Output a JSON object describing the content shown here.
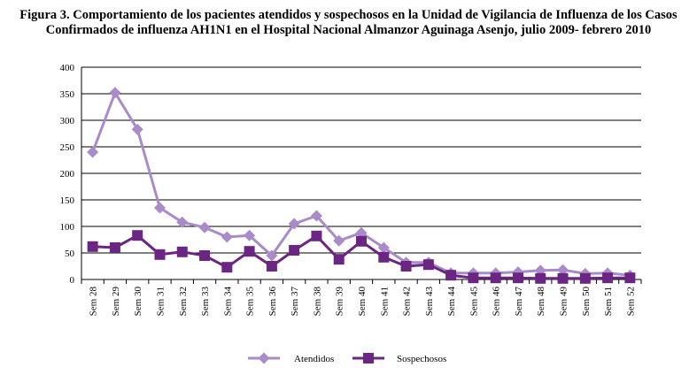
{
  "figure": {
    "title_line1": "Figura 3. Comportamiento de los pacientes atendidos y sospechosos en la Unidad de Vigilancia de Influenza de los Casos",
    "title_line2": "Confirmados de influenza AH1N1 en el Hospital Nacional Almanzor Aguinaga Asenjo, julio 2009- febrero 2010"
  },
  "chart_data": {
    "type": "line",
    "title": "Figura 3. Comportamiento de los pacientes atendidos y sospechosos en la Unidad de Vigilancia de Influenza de los Casos Confirmados de influenza AH1N1 en el Hospital Nacional Almanzor Aguinaga Asenjo, julio 2009- febrero 2010",
    "xlabel": "",
    "ylabel": "",
    "categories": [
      "Sem 28",
      "Sem 29",
      "Sem 30",
      "Sem 31",
      "Sem 32",
      "Sem 33",
      "Sem 34",
      "Sem 35",
      "Sem 36",
      "Sem 37",
      "Sem 38",
      "Sem 39",
      "Sem 40",
      "Sem 41",
      "Sem 42",
      "Sem 43",
      "Sem 44",
      "Sem 45",
      "Sem 46",
      "Sem 47",
      "Sem 48",
      "Sem 49",
      "Sem 50",
      "Sem 51",
      "Sem 52"
    ],
    "ylim": [
      0,
      400
    ],
    "yticks": [
      0,
      50,
      100,
      150,
      200,
      250,
      300,
      350,
      400
    ],
    "grid": true,
    "legend_position": "bottom",
    "series": [
      {
        "name": "Atendidos",
        "marker": "diamond",
        "color": "#a98bc9",
        "values": [
          240,
          352,
          283,
          135,
          108,
          98,
          80,
          83,
          45,
          105,
          120,
          73,
          88,
          60,
          32,
          32,
          12,
          12,
          12,
          14,
          17,
          18,
          11,
          12,
          8
        ]
      },
      {
        "name": "Sospechosos",
        "marker": "square",
        "color": "#6b2583",
        "values": [
          62,
          60,
          83,
          47,
          52,
          45,
          23,
          53,
          25,
          55,
          82,
          38,
          72,
          42,
          25,
          28,
          8,
          3,
          3,
          3,
          2,
          2,
          2,
          3,
          3
        ]
      }
    ]
  }
}
